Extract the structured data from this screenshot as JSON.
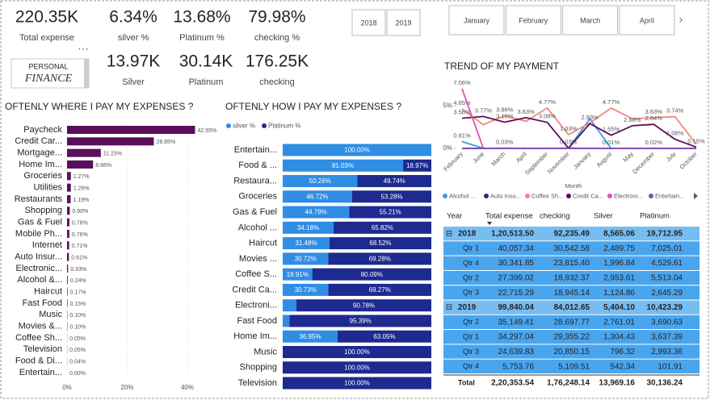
{
  "kpis": [
    {
      "value": "220.35K",
      "label": "Total expense"
    },
    {
      "value": "6.34%",
      "label": "silver %"
    },
    {
      "value": "13.68%",
      "label": "Platinum %"
    },
    {
      "value": "79.98%",
      "label": "checking %"
    },
    {
      "value": "13.97K",
      "label": "Silver"
    },
    {
      "value": "30.14K",
      "label": "Platinum"
    },
    {
      "value": "176.25K",
      "label": "checking"
    }
  ],
  "logo": {
    "line1": "PERSONAL",
    "line2": "FINANCE"
  },
  "year_buttons": [
    "2018",
    "2019"
  ],
  "month_buttons": [
    "January",
    "February",
    "March",
    "April"
  ],
  "chart_data": [
    {
      "type": "bar",
      "title": "OFTENLY WHERE I PAY MY EXPENSES ?",
      "categories": [
        "Paycheck",
        "Credit Car...",
        "Mortgage...",
        "Home Im...",
        "Groceries",
        "Utilities",
        "Restaurants",
        "Shopping",
        "Gas & Fuel",
        "Mobile Ph...",
        "Internet",
        "Auto Insur...",
        "Electronic...",
        "Alcohol &...",
        "Haircut",
        "Fast Food",
        "Music",
        "Movies &...",
        "Coffee Sh...",
        "Television",
        "Food & Di...",
        "Entertain..."
      ],
      "values": [
        42.55,
        28.85,
        11.23,
        8.66,
        1.27,
        1.26,
        1.19,
        0.9,
        0.78,
        0.76,
        0.71,
        0.61,
        0.33,
        0.24,
        0.17,
        0.15,
        0.1,
        0.1,
        0.05,
        0.05,
        0.04,
        0.0
      ],
      "value_labels": [
        "42.55%",
        "28.85%",
        "11.23%",
        "8.66%",
        "1.27%",
        "1.26%",
        "1.19%",
        "0.90%",
        "0.78%",
        "0.76%",
        "0.71%",
        "0.61%",
        "0.33%",
        "0.24%",
        "0.17%",
        "0.15%",
        "0.10%",
        "0.10%",
        "0.05%",
        "0.05%",
        "0.04%",
        "0.00%"
      ],
      "color": "#5b0e5b",
      "xlim": [
        0,
        45
      ],
      "xticks": [
        {
          "value": 0,
          "label": "0%"
        },
        {
          "value": 20,
          "label": "20%"
        },
        {
          "value": 40,
          "label": "40%"
        }
      ],
      "grid": true
    },
    {
      "type": "stacked_bar",
      "title": "OFTENLY HOW I PAY MY EXPENSES ?",
      "categories": [
        "Entertain...",
        "Food & ...",
        "Restaura...",
        "Groceries",
        "Gas & Fuel",
        "Alcohol ...",
        "Haircut",
        "Movies ...",
        "Coffee S...",
        "Credit Ca...",
        "Electroni...",
        "Fast Food",
        "Home Im...",
        "Music",
        "Shopping",
        "Television"
      ],
      "xlim": [
        0,
        100
      ],
      "series": [
        {
          "name": "silver %",
          "color": "#2f8de4",
          "values": [
            100.0,
            81.03,
            50.26,
            46.72,
            44.79,
            34.18,
            31.48,
            30.72,
            19.91,
            30.73,
            9.22,
            4.61,
            36.95,
            0,
            0,
            0
          ],
          "value_labels": [
            "100.00%",
            "81.03%",
            "50.26%",
            "46.72%",
            "44.79%",
            "34.18%",
            "31.48%",
            "30.72%",
            "19.91%",
            "30.73%",
            null,
            null,
            "36.95%",
            null,
            null,
            null
          ]
        },
        {
          "name": "Platinum %",
          "color": "#1d2a8f",
          "values": [
            0,
            18.97,
            49.74,
            53.28,
            55.21,
            65.82,
            68.52,
            69.28,
            80.09,
            69.27,
            90.78,
            95.39,
            63.05,
            100.0,
            100.0,
            100.0
          ],
          "value_labels": [
            null,
            "18.97%",
            "49.74%",
            "53.28%",
            "55.21%",
            "65.82%",
            "68.52%",
            "69.28%",
            "80.09%",
            "69.27%",
            "90.78%",
            "95.39%",
            "63.05%",
            "100.00%",
            "100.00%",
            "100.00%"
          ]
        }
      ]
    },
    {
      "type": "line",
      "title": "TREND OF MY PAYMENT",
      "x_label": "Month",
      "categories": [
        "February",
        "June",
        "March",
        "April",
        "September",
        "November",
        "January",
        "August",
        "May",
        "December",
        "July",
        "October"
      ],
      "ylim": [
        0,
        8
      ],
      "yticks": [
        {
          "value": 0,
          "label": "0%"
        },
        {
          "value": 5,
          "label": "5%"
        }
      ],
      "series": [
        {
          "name": "Alcohol ...",
          "color": "#3a9be8",
          "values": [
            0.81,
            0,
            0,
            0,
            0,
            0,
            3.5,
            0,
            0,
            0,
            0,
            0
          ],
          "value_labels": [
            "0.81%",
            null,
            null,
            null,
            null,
            null,
            null,
            null,
            null,
            null,
            null,
            null
          ]
        },
        {
          "name": "Auto Insu...",
          "color": "#1d2a8f",
          "values": [
            0,
            0,
            0,
            0,
            0,
            0.03,
            0,
            0,
            0,
            0,
            0,
            0
          ],
          "value_labels": [
            null,
            null,
            null,
            null,
            null,
            "0.03%",
            null,
            null,
            null,
            null,
            null,
            null
          ]
        },
        {
          "name": "Coffee Sh...",
          "color": "#f0897a",
          "values": [
            4.65,
            2.8,
            3.86,
            3.2,
            4.77,
            1.63,
            3.0,
            4.77,
            3.5,
            3.63,
            3.74,
            0.5
          ],
          "value_labels": [
            "4.65%",
            null,
            "3.86%",
            null,
            "4.77%",
            "1.63%",
            null,
            "4.77%",
            null,
            "3.63%",
            "3.74%",
            null
          ]
        },
        {
          "name": "Credit Ca...",
          "color": "#5b0e5b",
          "values": [
            3.56,
            3.77,
            3.1,
            3.63,
            3.08,
            0.03,
            2.93,
            1.55,
            2.68,
            2.84,
            1.08,
            0.15
          ],
          "value_labels": [
            "3.56%",
            "3.77%",
            "3.10%",
            "3.63%",
            "3.08%",
            null,
            "2.93%",
            "1.55%",
            "2.68%",
            "2.84%",
            "1.08%",
            "0.15%"
          ]
        },
        {
          "name": "Electroni...",
          "color": "#e04fb0",
          "values": [
            7.06,
            0,
            0.03,
            0,
            0,
            0,
            0,
            0.01,
            0,
            0.02,
            0,
            0
          ],
          "value_labels": [
            "7.06%",
            null,
            "0.03%",
            null,
            null,
            null,
            null,
            "0.01%",
            null,
            "0.02%",
            null,
            null
          ]
        },
        {
          "name": "Entertain...",
          "color": "#7b4fb8",
          "values": [
            0,
            0,
            0,
            0,
            0,
            0,
            0,
            0,
            0,
            0,
            0,
            0
          ],
          "value_labels": [
            null,
            null,
            null,
            null,
            null,
            null,
            null,
            null,
            null,
            null,
            null,
            null
          ]
        }
      ]
    }
  ],
  "table": {
    "headers": [
      "Year",
      "Total expense",
      "checking",
      "Silver",
      "Platinum"
    ],
    "groups": [
      {
        "year": "2018",
        "values": [
          "1,20,513.50",
          "92,235.49",
          "8,565.06",
          "19,712.95"
        ],
        "quarters": [
          {
            "label": "Qtr 1",
            "values": [
              "40,057.34",
              "30,542.58",
              "2,489.75",
              "7,025.01"
            ]
          },
          {
            "label": "Qtr 4",
            "values": [
              "30,341.85",
              "23,815.40",
              "1,996.84",
              "4,529.61"
            ]
          },
          {
            "label": "Qtr 2",
            "values": [
              "27,399.02",
              "18,932.37",
              "2,953.61",
              "5,513.04"
            ]
          },
          {
            "label": "Qtr 3",
            "values": [
              "22,715.29",
              "18,945.14",
              "1,124.86",
              "2,645.29"
            ]
          }
        ]
      },
      {
        "year": "2019",
        "values": [
          "99,840.04",
          "84,012.65",
          "5,404.10",
          "10,423.29"
        ],
        "quarters": [
          {
            "label": "Qtr 2",
            "values": [
              "35,149.41",
              "28,697.77",
              "2,761.01",
              "3,690.63"
            ]
          },
          {
            "label": "Qtr 1",
            "values": [
              "34,297.04",
              "29,355.22",
              "1,304.43",
              "3,637.39"
            ]
          },
          {
            "label": "Qtr 3",
            "values": [
              "24,639.83",
              "20,850.15",
              "796.32",
              "2,993.36"
            ]
          },
          {
            "label": "Qtr 4",
            "values": [
              "5,753.76",
              "5,109.51",
              "542.34",
              "101.91"
            ]
          }
        ]
      }
    ],
    "total": {
      "label": "Total",
      "values": [
        "2,20,353.54",
        "1,76,248.14",
        "13,969.16",
        "30,136.24"
      ]
    }
  }
}
